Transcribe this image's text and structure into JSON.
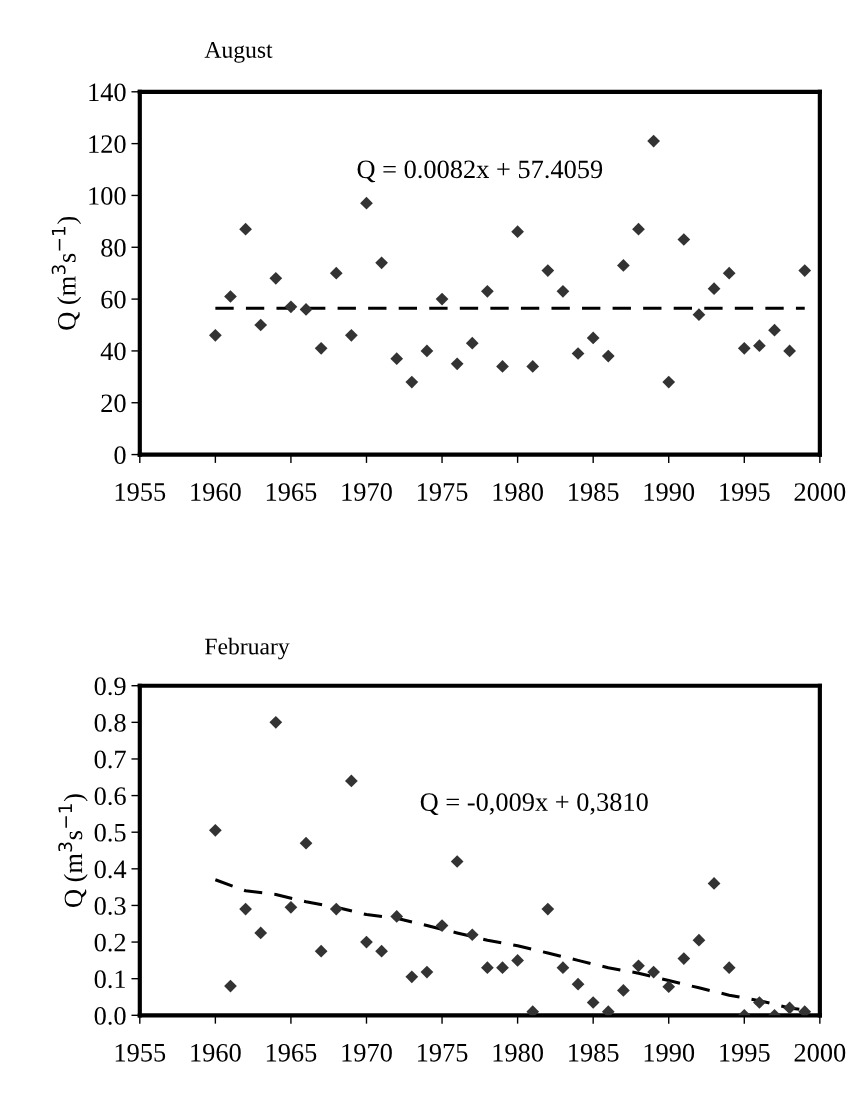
{
  "chart_data": [
    {
      "type": "scatter",
      "title": "August",
      "ylabel": "Q (m$^{3}$s$^{−1}$)",
      "xlim": [
        1955,
        2000
      ],
      "xticks": [
        1955,
        1960,
        1965,
        1970,
        1975,
        1980,
        1985,
        1990,
        1995,
        2000
      ],
      "ylim": [
        0,
        140
      ],
      "yticks": [
        0,
        20,
        40,
        60,
        80,
        100,
        120,
        140
      ],
      "annotations": [
        "Q = 0.0082x + 57.4059"
      ],
      "series": [
        {
          "marker": "diamond",
          "color": "#333333",
          "x": [
            1960,
            1961,
            1962,
            1963,
            1964,
            1965,
            1966,
            1967,
            1968,
            1969,
            1970,
            1971,
            1972,
            1973,
            1974,
            1975,
            1976,
            1977,
            1978,
            1979,
            1980,
            1981,
            1982,
            1983,
            1984,
            1985,
            1986,
            1987,
            1988,
            1989,
            1990,
            1991,
            1992,
            1993,
            1994,
            1995,
            1996,
            1997,
            1998,
            1999
          ],
          "values": [
            46,
            61,
            87,
            50,
            68,
            57,
            56,
            41,
            70,
            46,
            97,
            74,
            37,
            28,
            40,
            60,
            35,
            43,
            63,
            34,
            86,
            34,
            71,
            63,
            39,
            45,
            38,
            73,
            87,
            121,
            28,
            83,
            54,
            64,
            70,
            41,
            42,
            48,
            40,
            71
          ]
        },
        {
          "type": "line",
          "color": "#000000",
          "line_style": "dashed",
          "x": [
            1960,
            1999
          ],
          "values": [
            56.5,
            56.5
          ]
        }
      ]
    },
    {
      "type": "scatter",
      "title": "February",
      "ylabel": "Q (m$^{3}$s$^{−1}$)",
      "xlim": [
        1955,
        2000
      ],
      "xticks": [
        1955,
        1960,
        1965,
        1970,
        1975,
        1980,
        1985,
        1990,
        1995,
        2000
      ],
      "ylim": [
        0,
        0.9
      ],
      "yticks": [
        {
          "value": 0,
          "label": "0.0"
        },
        0.1,
        0.2,
        0.3,
        0.4,
        0.5,
        0.6,
        0.7,
        0.8,
        0.9
      ],
      "annotations": [
        "Q = -0,009x + 0,3810"
      ],
      "series": [
        {
          "marker": "diamond",
          "color": "#333333",
          "x": [
            1960,
            1961,
            1962,
            1963,
            1964,
            1965,
            1966,
            1967,
            1968,
            1969,
            1970,
            1971,
            1972,
            1973,
            1974,
            1975,
            1976,
            1977,
            1978,
            1979,
            1980,
            1981,
            1982,
            1983,
            1984,
            1985,
            1986,
            1987,
            1988,
            1989,
            1990,
            1991,
            1992,
            1993,
            1994,
            1995,
            1996,
            1997,
            1998,
            1999
          ],
          "values": [
            0.505,
            0.08,
            0.29,
            0.225,
            0.8,
            0.295,
            0.47,
            0.175,
            0.29,
            0.64,
            0.2,
            0.175,
            0.27,
            0.105,
            0.118,
            0.245,
            0.42,
            0.22,
            0.13,
            0.13,
            0.15,
            0.01,
            0.29,
            0.13,
            0.085,
            0.035,
            0.01,
            0.068,
            0.135,
            0.118,
            0.078,
            0.155,
            0.205,
            0.36,
            0.13,
            0.0,
            0.035,
            0.0,
            0.02,
            0.01
          ]
        },
        {
          "type": "line",
          "color": "#000000",
          "line_style": "dashed",
          "x": [
            1960,
            1962,
            1964,
            1966,
            1968,
            1970,
            1972,
            1974,
            1976,
            1978,
            1980,
            1982,
            1984,
            1986,
            1988,
            1990,
            1992,
            1994,
            1996,
            1998,
            1999
          ],
          "values": [
            0.37,
            0.34,
            0.33,
            0.31,
            0.295,
            0.275,
            0.265,
            0.245,
            0.225,
            0.205,
            0.19,
            0.17,
            0.15,
            0.13,
            0.115,
            0.095,
            0.075,
            0.055,
            0.04,
            0.02,
            0.015
          ]
        }
      ]
    }
  ]
}
